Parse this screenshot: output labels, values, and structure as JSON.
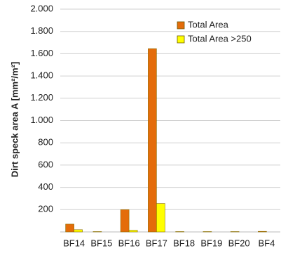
{
  "chart_data": {
    "type": "bar",
    "y_label": "Dirt speck  area A [mm²/m²]",
    "categories": [
      "BF14",
      "BF15",
      "BF16",
      "BF17",
      "BF18",
      "BF19",
      "BF20",
      "BF4"
    ],
    "series": [
      {
        "name": "Total Area",
        "color": "#e46c0a",
        "values": [
          70,
          3,
          200,
          1645,
          3,
          3,
          3,
          5
        ]
      },
      {
        "name": "Total Area >250",
        "color": "#ffff00",
        "values": [
          20,
          0,
          15,
          255,
          0,
          0,
          0,
          0
        ]
      }
    ],
    "ylim": [
      0,
      2000
    ],
    "yticks": [
      200,
      400,
      600,
      800,
      {
        "value": 1000,
        "label": "1.000"
      },
      {
        "value": 1200,
        "label": "1.200"
      },
      {
        "value": 1400,
        "label": "1.400"
      },
      {
        "value": 1600,
        "label": "1.600"
      },
      {
        "value": 1800,
        "label": "1.800"
      },
      {
        "value": 2000,
        "label": "2.000"
      }
    ],
    "grid": true,
    "legend": "top-right"
  }
}
